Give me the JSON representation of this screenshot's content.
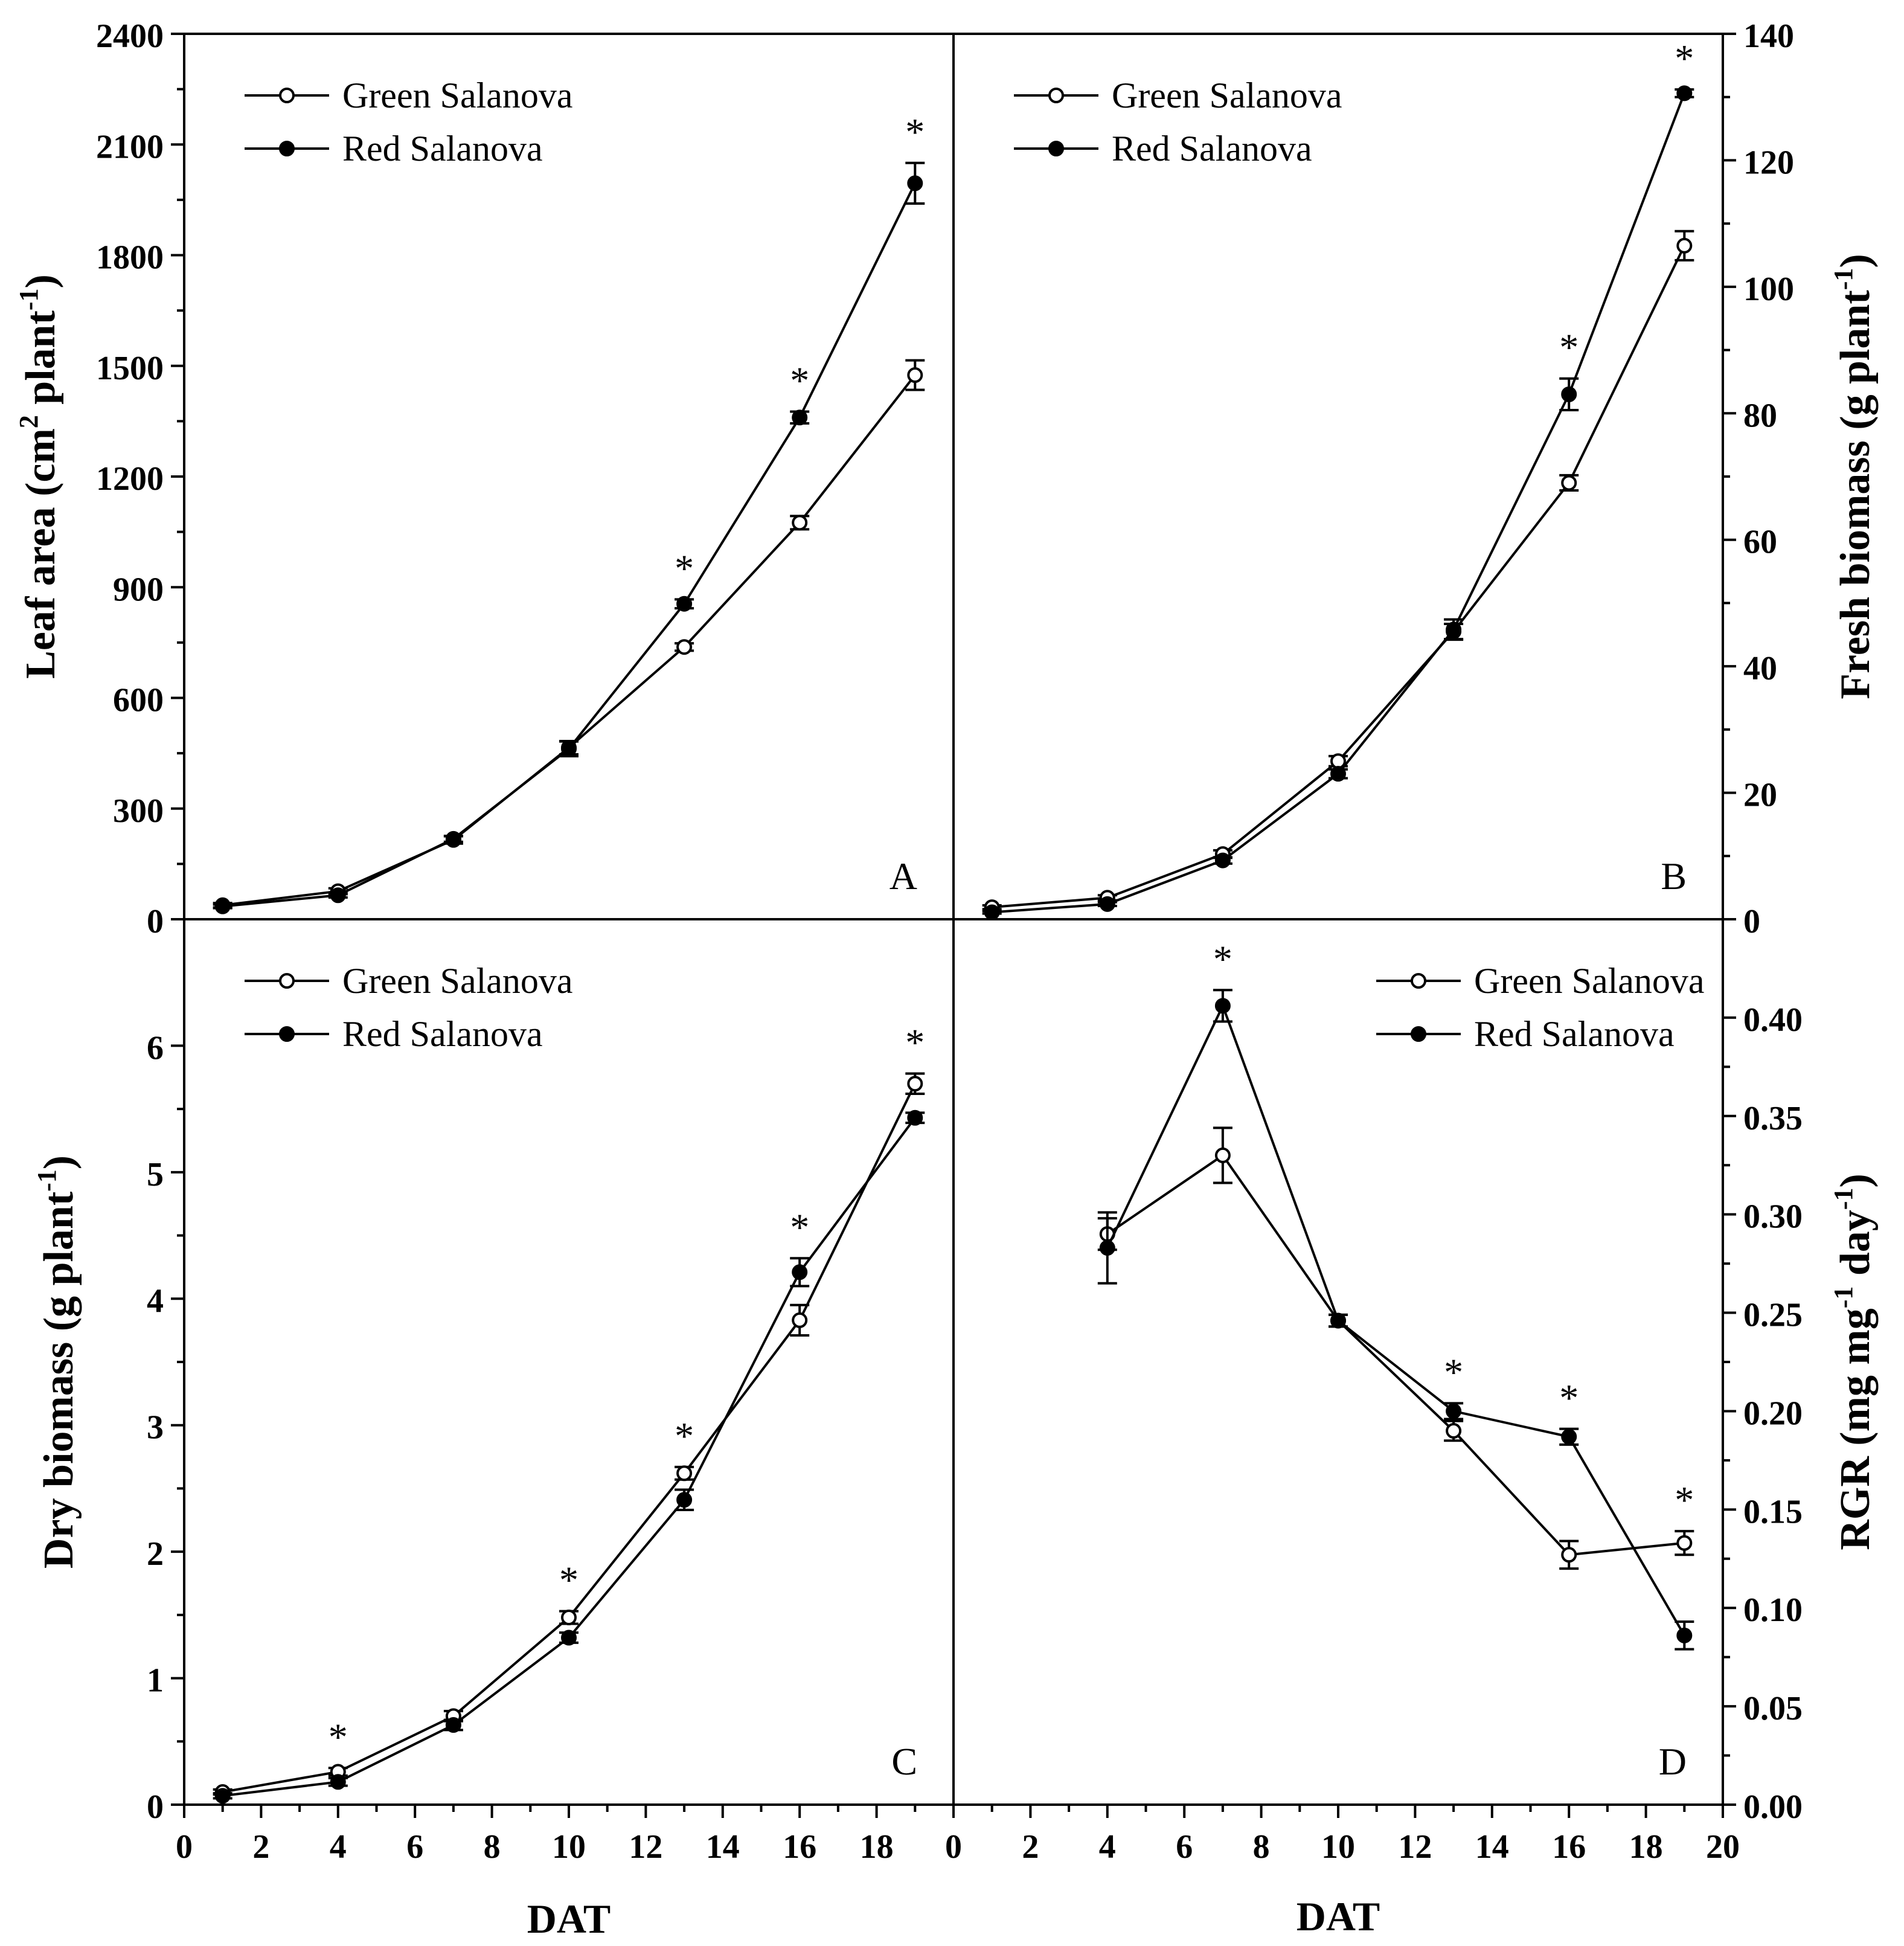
{
  "figure": {
    "x_axis_label": "DAT",
    "series_names": [
      "Green Salanova",
      "Red Salanova"
    ],
    "significance_marker": "*"
  },
  "chart_data": [
    {
      "type": "line",
      "panel": "A",
      "ylabel_main": "Leaf area (cm",
      "ylabel_sup1": "2",
      "ylabel_mid": " plant",
      "ylabel_sup2": "-1",
      "ylabel_end": ")",
      "y_axis_side": "left",
      "xlim": [
        0,
        20
      ],
      "ylim": [
        0,
        2400
      ],
      "xticks": [
        "0",
        "2",
        "4",
        "6",
        "8",
        "10",
        "12",
        "14",
        "16",
        "18"
      ],
      "yticks": [
        "0",
        "300",
        "600",
        "900",
        "1200",
        "1500",
        "1800",
        "2100",
        "2400"
      ],
      "legend_position": "top-left",
      "x": [
        1,
        4,
        7,
        10,
        13,
        16,
        19
      ],
      "series": [
        {
          "name": "Green Salanova",
          "marker": "open-circle",
          "values": [
            38,
            76,
            215,
            465,
            738,
            1075,
            1475
          ],
          "errors": [
            6,
            8,
            10,
            18,
            10,
            18,
            40
          ]
        },
        {
          "name": "Red Salanova",
          "marker": "filled-circle",
          "values": [
            35,
            65,
            218,
            462,
            855,
            1360,
            1995
          ],
          "errors": [
            5,
            6,
            8,
            20,
            12,
            16,
            55
          ]
        }
      ],
      "significant_x": [
        13,
        16,
        19
      ]
    },
    {
      "type": "line",
      "panel": "B",
      "ylabel_main": "Fresh biomass (g plant",
      "ylabel_sup1": "-1",
      "ylabel_end": ")",
      "y_axis_side": "right",
      "xlim": [
        0,
        20
      ],
      "ylim": [
        0,
        140
      ],
      "xticks": [
        "0",
        "2",
        "4",
        "6",
        "8",
        "10",
        "12",
        "14",
        "16",
        "18",
        "20"
      ],
      "yticks": [
        "0",
        "20",
        "40",
        "60",
        "80",
        "100",
        "120",
        "140"
      ],
      "legend_position": "top-left",
      "x": [
        1,
        4,
        7,
        10,
        13,
        16,
        19
      ],
      "series": [
        {
          "name": "Green Salanova",
          "marker": "open-circle",
          "values": [
            1.9,
            3.4,
            10.3,
            25.0,
            45.5,
            69.0,
            106.5
          ],
          "errors": [
            0.3,
            0.4,
            0.6,
            0.8,
            1.2,
            1.2,
            2.3
          ]
        },
        {
          "name": "Red Salanova",
          "marker": "filled-circle",
          "values": [
            1.1,
            2.4,
            9.3,
            23.0,
            45.8,
            83.0,
            130.6
          ],
          "errors": [
            0.2,
            0.3,
            0.5,
            0.7,
            1.6,
            2.5,
            0.6
          ]
        }
      ],
      "significant_x": [
        16,
        19
      ]
    },
    {
      "type": "line",
      "panel": "C",
      "ylabel_main": "Dry biomass (g plant",
      "ylabel_sup1": "-1",
      "ylabel_end": ")",
      "y_axis_side": "left",
      "xlim": [
        0,
        20
      ],
      "ylim": [
        0,
        7
      ],
      "xticks": [
        "0",
        "2",
        "4",
        "6",
        "8",
        "10",
        "12",
        "14",
        "16",
        "18"
      ],
      "yticks": [
        "0",
        "1",
        "2",
        "3",
        "4",
        "5",
        "6"
      ],
      "legend_position": "top-left",
      "x": [
        1,
        4,
        7,
        10,
        13,
        16,
        19
      ],
      "series": [
        {
          "name": "Green Salanova",
          "marker": "open-circle",
          "values": [
            0.1,
            0.26,
            0.7,
            1.48,
            2.62,
            3.83,
            5.7
          ],
          "errors": [
            0.02,
            0.03,
            0.04,
            0.05,
            0.05,
            0.12,
            0.08
          ]
        },
        {
          "name": "Red Salanova",
          "marker": "filled-circle",
          "values": [
            0.07,
            0.18,
            0.63,
            1.32,
            2.41,
            4.21,
            5.43
          ],
          "errors": [
            0.02,
            0.03,
            0.04,
            0.04,
            0.08,
            0.11,
            0.04
          ]
        }
      ],
      "significant_x": [
        4,
        10,
        13,
        16,
        19
      ]
    },
    {
      "type": "line",
      "panel": "D",
      "ylabel_main": "RGR (mg mg",
      "ylabel_sup1": "-1",
      "ylabel_mid": " day",
      "ylabel_sup2": "-1",
      "ylabel_end": ")",
      "y_axis_side": "right",
      "xlim": [
        0,
        20
      ],
      "ylim": [
        0,
        0.45
      ],
      "xticks": [
        "0",
        "2",
        "4",
        "6",
        "8",
        "10",
        "12",
        "14",
        "16",
        "18",
        "20"
      ],
      "yticks": [
        "0.00",
        "0.05",
        "0.10",
        "0.15",
        "0.20",
        "0.25",
        "0.30",
        "0.35",
        "0.40"
      ],
      "legend_position": "top-right",
      "x": [
        4,
        7,
        10,
        13,
        16,
        19
      ],
      "series": [
        {
          "name": "Green Salanova",
          "marker": "open-circle",
          "values": [
            0.29,
            0.33,
            0.246,
            0.19,
            0.127,
            0.133
          ],
          "errors": [
            0.008,
            0.014,
            0.003,
            0.005,
            0.007,
            0.006
          ]
        },
        {
          "name": "Red Salanova",
          "marker": "filled-circle",
          "values": [
            0.283,
            0.406,
            0.246,
            0.2,
            0.187,
            0.086
          ],
          "errors": [
            0.018,
            0.008,
            0.003,
            0.004,
            0.004,
            0.007
          ]
        }
      ],
      "significant_x": [
        7,
        13,
        16,
        19
      ]
    }
  ]
}
